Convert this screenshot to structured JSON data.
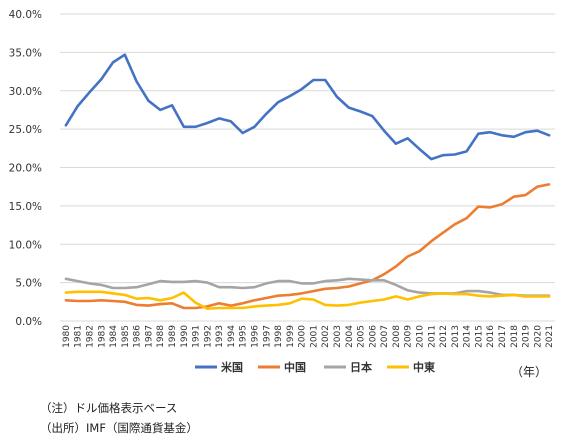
{
  "chart_data": {
    "type": "line",
    "title": "",
    "xlabel": "",
    "ylabel": "",
    "x_unit_label": "（年）",
    "ylim": [
      0,
      40
    ],
    "y_ticks": [
      "0.0%",
      "5.0%",
      "10.0%",
      "15.0%",
      "20.0%",
      "25.0%",
      "30.0%",
      "35.0%",
      "40.0%"
    ],
    "x": [
      "1980",
      "1981",
      "1982",
      "1983",
      "1984",
      "1985",
      "1986",
      "1987",
      "1988",
      "1989",
      "1990",
      "1991",
      "1992",
      "1993",
      "1994",
      "1995",
      "1996",
      "1997",
      "1998",
      "1999",
      "2000",
      "2001",
      "2002",
      "2003",
      "2004",
      "2005",
      "2006",
      "2007",
      "2008",
      "2009",
      "2010",
      "2011",
      "2012",
      "2013",
      "2014",
      "2015",
      "2016",
      "2017",
      "2018",
      "2019",
      "2020",
      "2021"
    ],
    "grid": true,
    "legend_position": "bottom",
    "series": [
      {
        "name": "米国",
        "color": "#4472C4",
        "values": [
          25.5,
          28.0,
          29.8,
          31.5,
          33.7,
          34.7,
          31.2,
          28.7,
          27.5,
          28.1,
          25.3,
          25.3,
          25.8,
          26.4,
          26.0,
          24.5,
          25.3,
          27.0,
          28.5,
          29.3,
          30.2,
          31.4,
          31.4,
          29.2,
          27.8,
          27.3,
          26.7,
          24.8,
          23.1,
          23.8,
          22.4,
          21.1,
          21.6,
          21.7,
          22.1,
          24.4,
          24.6,
          24.2,
          24.0,
          24.6,
          24.8,
          24.2
        ]
      },
      {
        "name": "中国",
        "color": "#ED7D31",
        "values": [
          2.7,
          2.6,
          2.6,
          2.7,
          2.6,
          2.5,
          2.1,
          2.0,
          2.2,
          2.3,
          1.7,
          1.7,
          1.9,
          2.3,
          2.0,
          2.3,
          2.7,
          3.0,
          3.3,
          3.4,
          3.6,
          3.9,
          4.2,
          4.3,
          4.5,
          4.9,
          5.3,
          6.1,
          7.1,
          8.4,
          9.1,
          10.4,
          11.5,
          12.6,
          13.4,
          14.9,
          14.8,
          15.2,
          16.2,
          16.4,
          17.5,
          17.8
        ]
      },
      {
        "name": "日本",
        "color": "#A5A5A5",
        "values": [
          5.5,
          5.2,
          4.9,
          4.7,
          4.3,
          4.3,
          4.4,
          4.8,
          5.2,
          5.1,
          5.1,
          5.2,
          5.0,
          4.4,
          4.4,
          4.3,
          4.4,
          4.9,
          5.2,
          5.2,
          4.9,
          4.9,
          5.2,
          5.3,
          5.5,
          5.4,
          5.3,
          5.3,
          4.7,
          4.0,
          3.7,
          3.6,
          3.6,
          3.6,
          3.9,
          3.9,
          3.7,
          3.4,
          3.4,
          3.3,
          3.3,
          3.3
        ]
      },
      {
        "name": "中東",
        "color": "#FFC000",
        "values": [
          3.7,
          3.8,
          3.8,
          3.8,
          3.6,
          3.4,
          2.9,
          3.0,
          2.7,
          3.0,
          3.7,
          2.4,
          1.6,
          1.7,
          1.7,
          1.7,
          1.9,
          2.0,
          2.1,
          2.3,
          2.9,
          2.8,
          2.1,
          2.0,
          2.1,
          2.4,
          2.6,
          2.8,
          3.2,
          2.8,
          3.2,
          3.5,
          3.6,
          3.5,
          3.5,
          3.3,
          3.2,
          3.3,
          3.4,
          3.2,
          3.2,
          3.2
        ]
      }
    ]
  },
  "notes": {
    "note1": "（注）ドル価格表示ベース",
    "note2": "（出所）IMF（国際通貨基金）"
  }
}
